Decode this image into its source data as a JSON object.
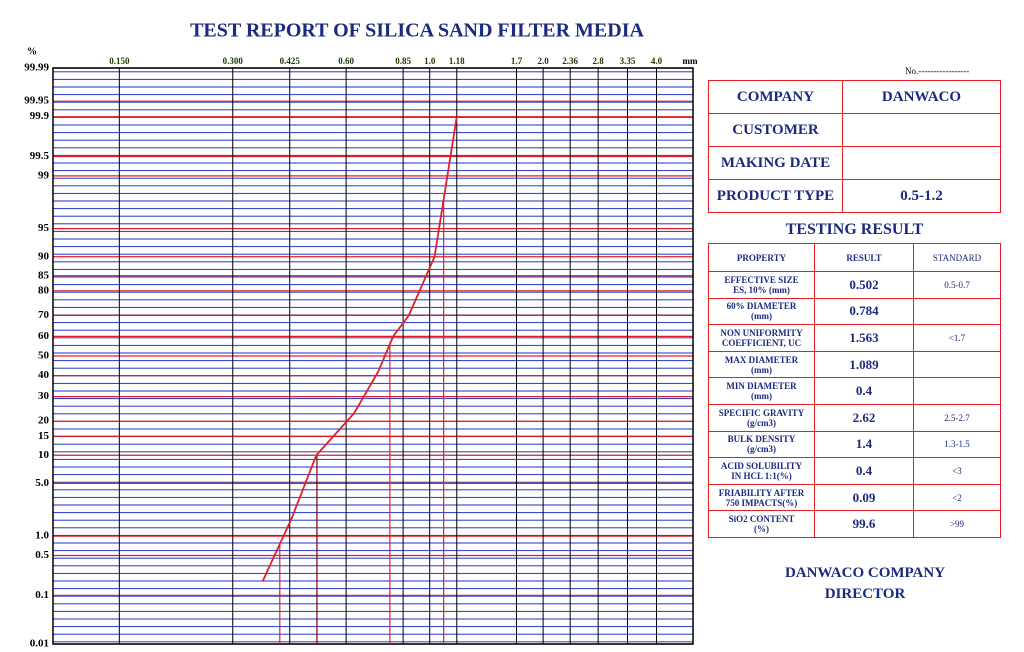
{
  "chart_data": {
    "type": "line",
    "title": "TEST REPORT OF SILICA SAND FILTER MEDIA",
    "y_unit": "%",
    "x_unit": "mm",
    "x": [
      0.36,
      0.43,
      0.5,
      0.63,
      0.73,
      0.8,
      0.88,
      1.03,
      1.18
    ],
    "values": [
      0.18,
      1.8,
      10,
      23,
      42,
      60,
      70,
      90,
      99.9
    ],
    "color": "#e31e24",
    "xscale": "log",
    "xlim": [
      0.1,
      5
    ],
    "xticks": [
      {
        "value": 0.15,
        "label": "0.150"
      },
      {
        "value": 0.3,
        "label": "0.300"
      },
      0.425,
      {
        "value": 0.6,
        "label": "0.60"
      },
      0.85,
      {
        "value": 1,
        "label": "1.0"
      },
      1.18,
      1.7,
      {
        "value": 2,
        "label": "2.0"
      },
      2.36,
      2.8,
      3.35,
      {
        "value": 4,
        "label": "4.0"
      }
    ],
    "yscale": "probability",
    "ylim": [
      0.01,
      99.99
    ],
    "yticks": [
      99.99,
      99.95,
      99.9,
      99.5,
      99,
      95,
      90,
      85,
      80,
      70,
      60,
      50,
      40,
      30,
      20,
      15,
      10,
      {
        "value": 5,
        "label": "5.0"
      },
      {
        "value": 1,
        "label": "1.0"
      },
      0.5,
      0.1,
      0.01
    ],
    "grid": true
  },
  "number_label": "No.-----------------",
  "info": [
    {
      "label": "COMPANY",
      "value": "DANWACO"
    },
    {
      "label": "CUSTOMER"
    },
    {
      "label": "MAKING DATE"
    },
    {
      "label": "PRODUCT TYPE",
      "value": "0.5-1.2"
    }
  ],
  "results": {
    "title": "TESTING RESULT",
    "headers": [
      "PROPERTY",
      "RESULT",
      "STANDARD"
    ],
    "rows": [
      {
        "property": [
          "EFFECTIVE SIZE",
          "ES, 10% (mm)"
        ],
        "result": 0.502,
        "standard": "0.5-0.7"
      },
      {
        "property": [
          "60% DIAMETER",
          "(mm)"
        ],
        "result": 0.784
      },
      {
        "property": [
          "NON UNIFORMITY",
          "COEFFICIENT, UC"
        ],
        "result": 1.563,
        "standard": "<1.7"
      },
      {
        "property": [
          "MAX DIAMETER",
          "(mm)"
        ],
        "result": 1.089
      },
      {
        "property": [
          "MIN DIAMETER",
          "(mm)"
        ],
        "result": 0.4
      },
      {
        "property": [
          "SPECIFIC GRAVITY",
          "(g/cm3)"
        ],
        "result": 2.62,
        "standard": "2.5-2.7"
      },
      {
        "property": [
          "BULK DENSITY",
          "(g/cm3)"
        ],
        "result": 1.4,
        "standard": "1.3-1.5"
      },
      {
        "property": [
          "ACID SOLUBILITY",
          "IN HCL 1:1(%)"
        ],
        "result": 0.4,
        "standard": "<3"
      },
      {
        "property": [
          "FRIABILITY AFTER",
          "750 IMPACTS(%)"
        ],
        "result": 0.09,
        "standard": "<2"
      },
      {
        "property": [
          "SiO2 CONTENT",
          "(%)"
        ],
        "result": 99.6,
        "standard": ">99"
      }
    ]
  },
  "footer": [
    "DANWACO COMPANY",
    "DIRECTOR"
  ]
}
